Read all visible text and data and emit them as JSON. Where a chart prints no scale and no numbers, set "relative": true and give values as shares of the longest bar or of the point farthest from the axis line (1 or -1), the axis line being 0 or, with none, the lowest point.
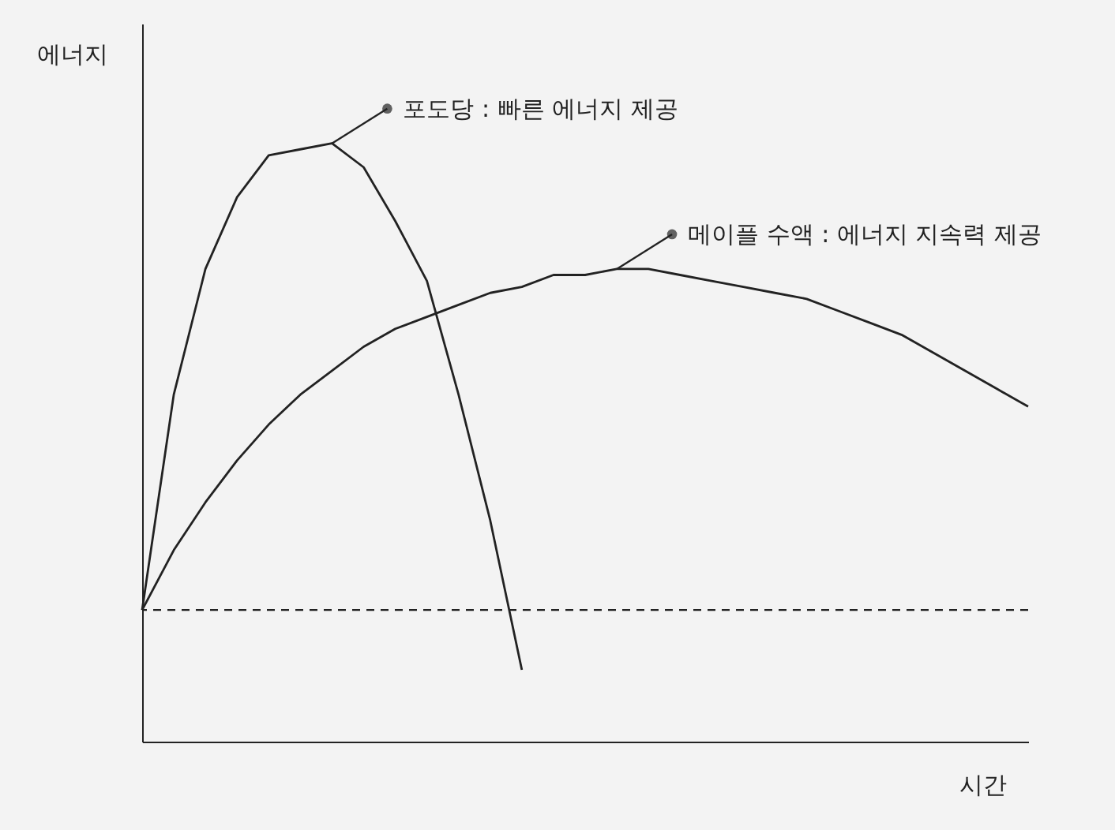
{
  "chart_data": {
    "type": "line",
    "legend": "top right",
    "relative": true,
    "xlabel": "시간",
    "ylabel": "에너지",
    "categories": [
      null,
      null,
      null,
      null,
      null,
      null,
      null,
      null,
      null,
      null,
      null,
      null,
      null,
      null,
      null,
      null,
      null,
      null,
      null,
      null,
      null,
      null,
      null,
      null,
      null,
      null,
      null,
      null,
      null
    ],
    "series": [
      {
        "name": "포도당 : 빠른 에너지 제공",
        "color": "#222222",
        "values": [
          0.22,
          0.58,
          0.79,
          0.91,
          0.98,
          0.99,
          1.0,
          0.96,
          0.87,
          0.77,
          0.58,
          0.37,
          0.12,
          null,
          null,
          null,
          null,
          null,
          null,
          null,
          null,
          null,
          null,
          null,
          null,
          null,
          null,
          null,
          null
        ]
      },
      {
        "name": "메이플 수액 : 에너지 지속력 제공",
        "color": "#222222",
        "values": [
          0.22,
          0.32,
          0.4,
          0.47,
          0.53,
          0.58,
          0.62,
          0.66,
          0.69,
          0.71,
          0.73,
          0.75,
          0.76,
          0.78,
          0.78,
          0.79,
          0.79,
          0.78,
          0.77,
          0.76,
          0.75,
          0.74,
          0.72,
          0.7,
          0.68,
          0.65,
          0.62,
          0.59,
          0.56
        ]
      }
    ],
    "ref_lines": [
      {
        "axis": "y",
        "value": 0.22,
        "line_style": "dashed"
      }
    ]
  }
}
